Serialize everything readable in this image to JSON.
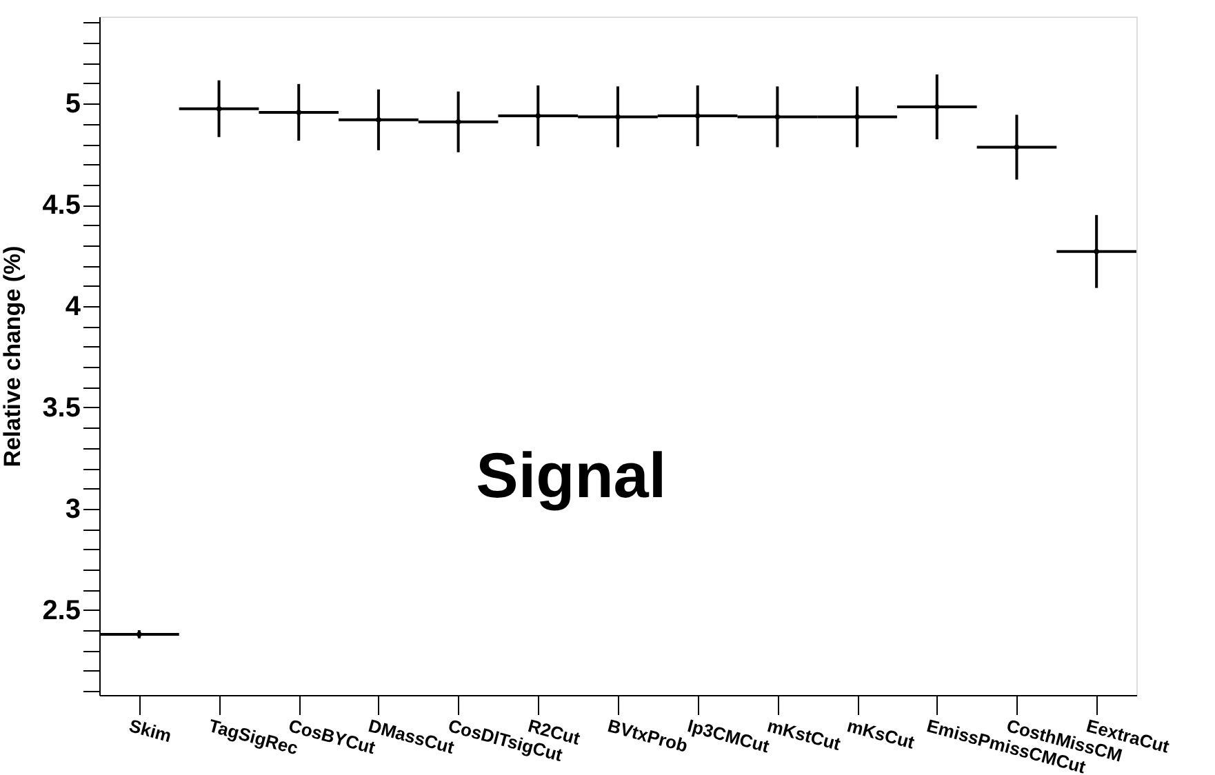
{
  "chart_data": {
    "type": "scatter",
    "ylabel": "Relative change (%)",
    "annotations": [
      "Signal"
    ],
    "categories": [
      "Skim",
      "TagSigRec",
      "CosBYCut",
      "DMassCut",
      "CosDlTsigCut",
      "R2Cut",
      "BVtxProb",
      "Ip3CMCut",
      "mKstCut",
      "mKsCut",
      "EmissPmissCMCut",
      "CosthMissCM",
      "EextraCut"
    ],
    "values": [
      2.38,
      4.975,
      4.957,
      4.92,
      4.91,
      4.94,
      4.935,
      4.94,
      4.935,
      4.935,
      4.984,
      4.785,
      4.27
    ],
    "errors": [
      0.02,
      0.14,
      0.14,
      0.15,
      0.15,
      0.15,
      0.15,
      0.15,
      0.15,
      0.15,
      0.16,
      0.16,
      0.18
    ],
    "color": "#000000",
    "ylim": [
      2.08,
      5.43
    ],
    "yticks": [
      {
        "value": 2.1,
        "label": null
      },
      {
        "value": 2.2,
        "label": null
      },
      {
        "value": 2.3,
        "label": null
      },
      {
        "value": 2.4,
        "label": null
      },
      2.5,
      {
        "value": 2.6,
        "label": null
      },
      {
        "value": 2.7,
        "label": null
      },
      {
        "value": 2.8,
        "label": null
      },
      {
        "value": 2.9,
        "label": null
      },
      3,
      {
        "value": 3.1,
        "label": null
      },
      {
        "value": 3.2,
        "label": null
      },
      {
        "value": 3.3,
        "label": null
      },
      {
        "value": 3.4,
        "label": null
      },
      3.5,
      {
        "value": 3.6,
        "label": null
      },
      {
        "value": 3.7,
        "label": null
      },
      {
        "value": 3.8,
        "label": null
      },
      {
        "value": 3.9,
        "label": null
      },
      4,
      {
        "value": 4.1,
        "label": null
      },
      {
        "value": 4.2,
        "label": null
      },
      {
        "value": 4.3,
        "label": null
      },
      {
        "value": 4.4,
        "label": null
      },
      4.5,
      {
        "value": 4.6,
        "label": null
      },
      {
        "value": 4.7,
        "label": null
      },
      {
        "value": 4.8,
        "label": null
      },
      {
        "value": 4.9,
        "label": null
      },
      5,
      {
        "value": 5.1,
        "label": null
      },
      {
        "value": 5.2,
        "label": null
      },
      {
        "value": 5.3,
        "label": null
      },
      {
        "value": 5.4,
        "label": null
      }
    ],
    "grid": false
  }
}
